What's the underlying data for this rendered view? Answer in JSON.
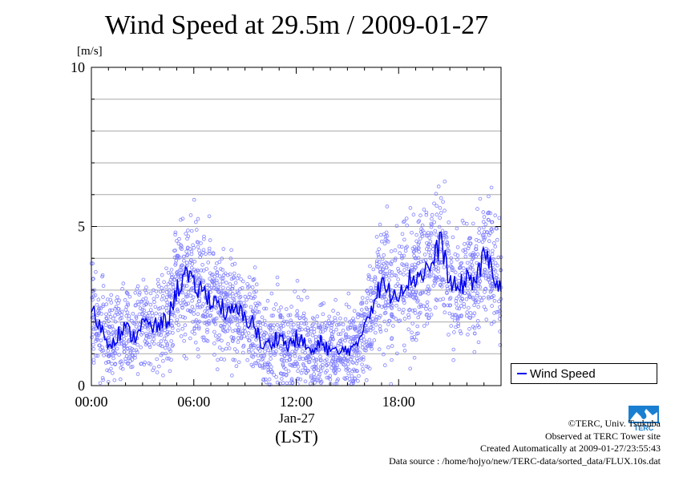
{
  "chart_data": {
    "type": "line",
    "title": "Wind Speed at 29.5m / 2009-01-27",
    "ylabel_unit": "[m/s]",
    "xlabel": "(LST)",
    "x_date_label": "Jan-27",
    "ylim": [
      0,
      10
    ],
    "xlim_hours": [
      0,
      24
    ],
    "y_ticks": [
      0,
      5,
      10
    ],
    "y_gridlines": [
      1,
      2,
      3,
      4,
      5,
      6,
      7,
      8,
      9
    ],
    "x_ticks": [
      {
        "hour": 0,
        "label": "00:00"
      },
      {
        "hour": 6,
        "label": "06:00"
      },
      {
        "hour": 12,
        "label": "12:00"
      },
      {
        "hour": 18,
        "label": "18:00"
      }
    ],
    "legend": {
      "position": "bottom-right outside",
      "label": "Wind Speed"
    },
    "series": [
      {
        "name": "Wind Speed",
        "color": "#0000ee",
        "x_hours": [
          0,
          0.5,
          1,
          1.5,
          2,
          2.5,
          3,
          3.5,
          4,
          4.5,
          5,
          5.5,
          6,
          6.5,
          7,
          7.5,
          8,
          8.5,
          9,
          9.5,
          10,
          10.5,
          11,
          11.5,
          12,
          12.5,
          13,
          13.5,
          14,
          14.5,
          15,
          15.5,
          16,
          16.5,
          17,
          17.5,
          18,
          18.5,
          19,
          19.5,
          20,
          20.5,
          21,
          21.5,
          22,
          22.5,
          23,
          23.5,
          24
        ],
        "values": [
          2.4,
          1.9,
          1.3,
          1.6,
          1.8,
          1.5,
          2.0,
          1.8,
          1.9,
          2.1,
          3.0,
          3.5,
          3.1,
          3.0,
          2.7,
          2.6,
          2.2,
          2.4,
          2.1,
          2.0,
          1.2,
          1.3,
          1.6,
          1.2,
          1.5,
          1.3,
          1.0,
          1.4,
          1.1,
          1.0,
          1.2,
          1.1,
          2.0,
          2.6,
          3.2,
          2.9,
          3.0,
          3.3,
          3.4,
          3.6,
          3.8,
          4.6,
          3.2,
          3.0,
          3.4,
          3.3,
          4.0,
          3.8,
          2.8
        ]
      }
    ],
    "scatter_color": "#8080ff"
  },
  "credits": {
    "copyright": "©TERC, Univ. Tsukuba",
    "observed": "Observed at TERC Tower site",
    "created": "Created Automatically at 2009-01-27/23:55:43",
    "source": "Data source : /home/hojyo/new/TERC-data/sorted_data/FLUX.10s.dat"
  },
  "logo_text": "TERC"
}
